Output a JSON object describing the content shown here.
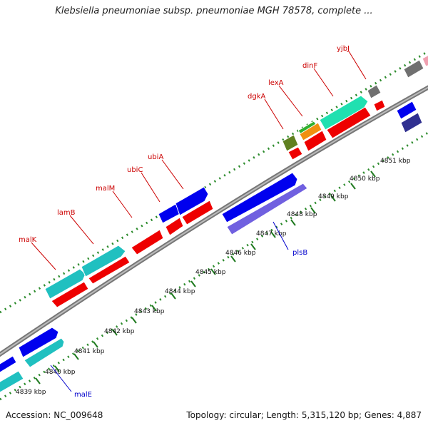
{
  "title": "Klebsiella pneumoniae subsp. pneumoniae MGH 78578, complete ...",
  "accession": "Accession: NC_009648",
  "summary": "Topology: circular; Length: 5,315,120 bp; Genes: 4,887",
  "colors": {
    "backbone": "#8a8a8a",
    "forward_cds": "#0000ee",
    "reverse_cds": "#ee0000",
    "cyan_feature": "#20c0c0",
    "teal_feature": "#20e0b0",
    "violet_feature": "#7060e0",
    "navy_feature": "#303090",
    "olive_feature": "#608020",
    "orange_feature": "#f09010",
    "grey_feature": "#707070",
    "dotted_track": "#2a8a2a",
    "label_red": "#cc0000",
    "label_blue": "#0000cc"
  },
  "scale": {
    "unit": "kbp",
    "ticks": [
      "4839 kbp",
      "4840 kbp",
      "4841 kbp",
      "4842 kbp",
      "4843 kbp",
      "4844 kbp",
      "4845 kbp",
      "4846 kbp",
      "4847 kbp",
      "4848 kbp",
      "4849 kbp",
      "4850 kbp",
      "4851 kbp"
    ]
  },
  "gene_labels": [
    "malK",
    "lamB",
    "malM",
    "ubiC",
    "ubiA",
    "dgkA",
    "lexA",
    "dinF",
    "yjbJ",
    "plsB",
    "malE"
  ]
}
